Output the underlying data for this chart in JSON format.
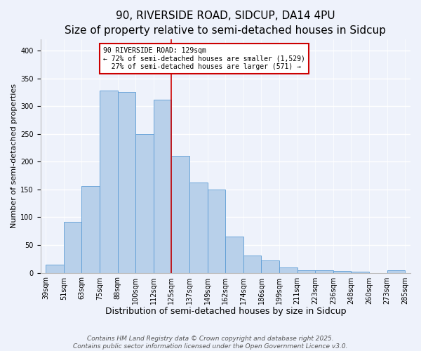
{
  "title": "90, RIVERSIDE ROAD, SIDCUP, DA14 4PU",
  "subtitle": "Size of property relative to semi-detached houses in Sidcup",
  "xlabel": "Distribution of semi-detached houses by size in Sidcup",
  "ylabel": "Number of semi-detached properties",
  "categories": [
    "39sqm",
    "51sqm",
    "63sqm",
    "75sqm",
    "88sqm",
    "100sqm",
    "112sqm",
    "125sqm",
    "137sqm",
    "149sqm",
    "162sqm",
    "174sqm",
    "186sqm",
    "199sqm",
    "211sqm",
    "223sqm",
    "236sqm",
    "248sqm",
    "260sqm",
    "273sqm",
    "285sqm"
  ],
  "values": [
    15,
    92,
    156,
    328,
    325,
    250,
    312,
    210,
    163,
    150,
    65,
    31,
    22,
    10,
    5,
    5,
    3,
    2,
    0,
    4
  ],
  "bar_color": "#b8d0ea",
  "bar_edge_color": "#5b9bd5",
  "background_color": "#eef2fb",
  "grid_color": "#ffffff",
  "marker_line_value": 7,
  "marker_label": "90 RIVERSIDE ROAD: 129sqm",
  "pct_smaller": "72% of semi-detached houses are smaller (1,529)",
  "pct_larger": "27% of semi-detached houses are larger (571)",
  "annotation_box_edge": "#cc0000",
  "marker_line_color": "#cc0000",
  "ylim": [
    0,
    420
  ],
  "yticks": [
    0,
    50,
    100,
    150,
    200,
    250,
    300,
    350,
    400
  ],
  "footer1": "Contains HM Land Registry data © Crown copyright and database right 2025.",
  "footer2": "Contains public sector information licensed under the Open Government Licence v3.0.",
  "title_fontsize": 11,
  "xlabel_fontsize": 9,
  "ylabel_fontsize": 8,
  "tick_fontsize": 7,
  "annotation_fontsize": 7,
  "footer_fontsize": 6.5
}
